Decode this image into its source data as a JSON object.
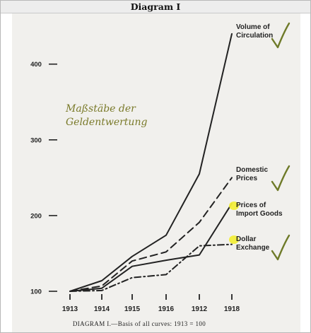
{
  "header": {
    "title": "Diagram I"
  },
  "annotation": {
    "line1": "Maßstäbe der",
    "line2": "Geldentwertung",
    "color": "#7a7a2a"
  },
  "colors": {
    "ink": "#222222",
    "highlight": "#f2ee3a",
    "checkmark": "#6e7a28",
    "paper": "#f1f0ed"
  },
  "chart_data": {
    "type": "line",
    "title": "",
    "caption": "DIAGRAM I.—Basis of all curves: 1913 = 100",
    "xlabel": "",
    "ylabel": "",
    "categories": [
      "1913",
      "1914",
      "1915",
      "1916",
      "1912",
      "1918"
    ],
    "ylim": [
      100,
      450
    ],
    "yticks": [
      100,
      200,
      300,
      400
    ],
    "ytick_labels": [
      "100",
      "200",
      "300",
      "400"
    ],
    "grid": false,
    "series": [
      {
        "name": "Volume of Circulation",
        "name_lines": [
          "Volume of",
          "Circulation"
        ],
        "style": "solid",
        "highlight": false,
        "checked": true,
        "values": [
          100,
          114,
          146,
          174,
          255,
          440
        ]
      },
      {
        "name": "Domestic Prices",
        "name_lines": [
          "Domestic",
          "Prices"
        ],
        "style": "dashed",
        "highlight": false,
        "checked": true,
        "values": [
          100,
          107,
          140,
          152,
          191,
          250
        ]
      },
      {
        "name": "Prices of Import Goods",
        "name_lines": [
          "Prices of",
          "Import Goods"
        ],
        "style": "solid",
        "highlight": true,
        "checked": false,
        "values": [
          100,
          104,
          133,
          141,
          148,
          216
        ]
      },
      {
        "name": "Dollar Exchange",
        "name_lines": [
          "Dollar",
          "Exchange"
        ],
        "style": "dashdot",
        "highlight": true,
        "checked": true,
        "values": [
          100,
          101,
          118,
          122,
          160,
          162
        ]
      }
    ]
  }
}
